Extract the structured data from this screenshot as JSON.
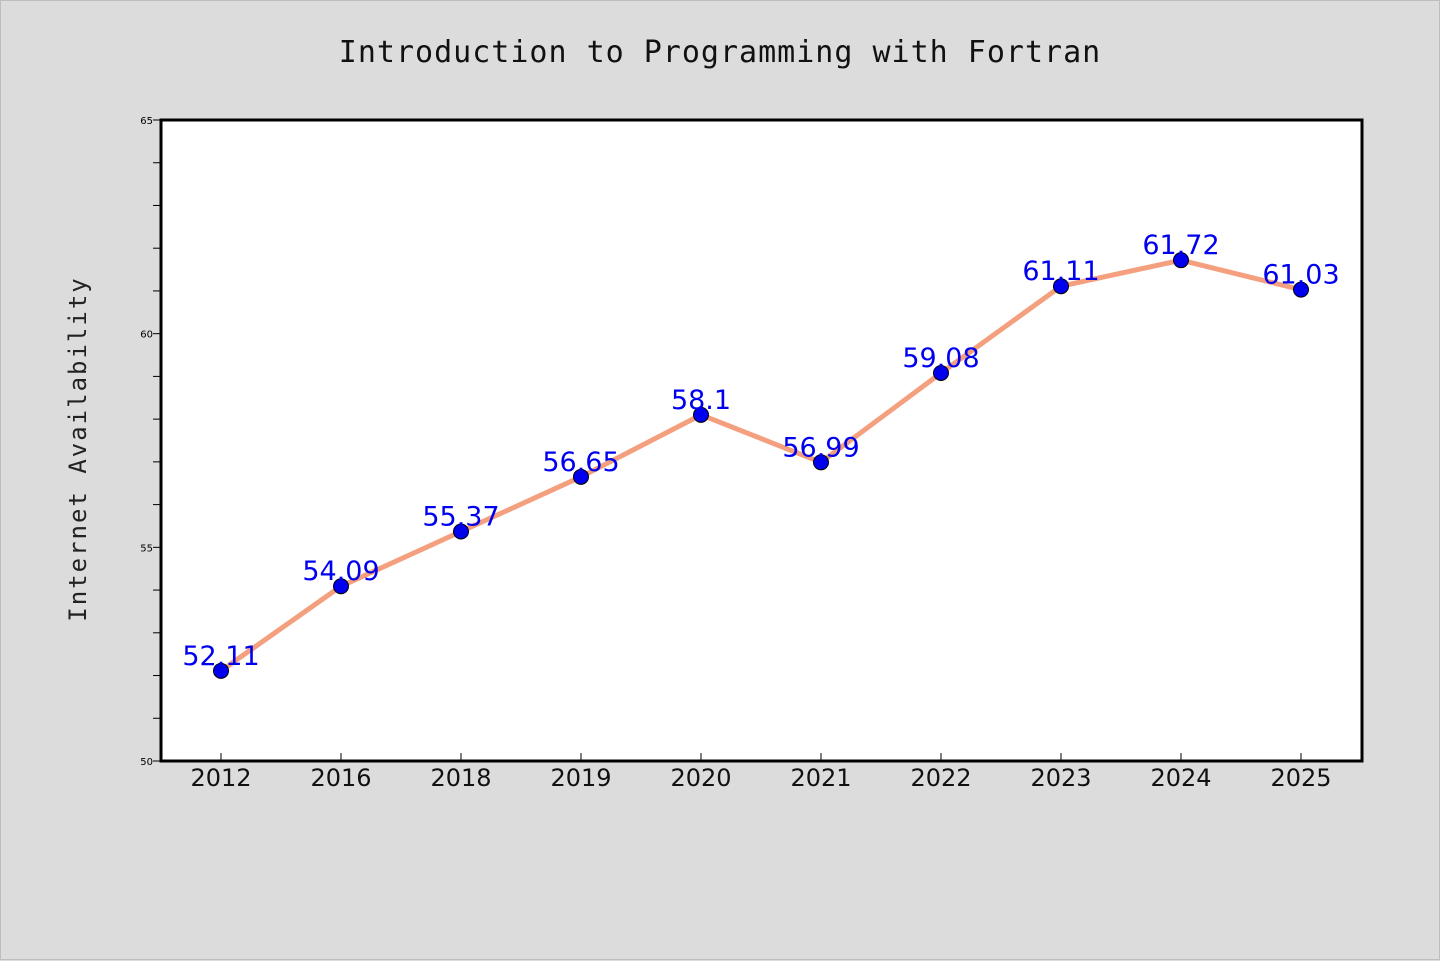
{
  "chart_data": {
    "type": "line",
    "title": "Introduction to Programming with Fortran",
    "xlabel": "",
    "ylabel": "Internet Availability",
    "categories": [
      "2012",
      "2016",
      "2018",
      "2019",
      "2020",
      "2021",
      "2022",
      "2023",
      "2024",
      "2025"
    ],
    "series": [
      {
        "values": [
          52.11,
          54.09,
          55.37,
          56.65,
          58.1,
          56.99,
          59.08,
          61.11,
          61.72,
          61.03
        ],
        "labels": [
          "52.11",
          "54.09",
          "55.37",
          "56.65",
          "58.1",
          "56.99",
          "59.08",
          "61.11",
          "61.72",
          "61.03"
        ],
        "line_color": "#f4a07e",
        "marker_color": "#0000ee",
        "label_color": "#0000ee"
      }
    ],
    "ylim": [
      50,
      65
    ],
    "yticks": [
      "50",
      "55",
      "60",
      "65"
    ],
    "grid": false,
    "legend": "none"
  },
  "colors": {
    "background": "#dcdcdc",
    "plot_background": "#ffffff",
    "axis": "#000000"
  }
}
